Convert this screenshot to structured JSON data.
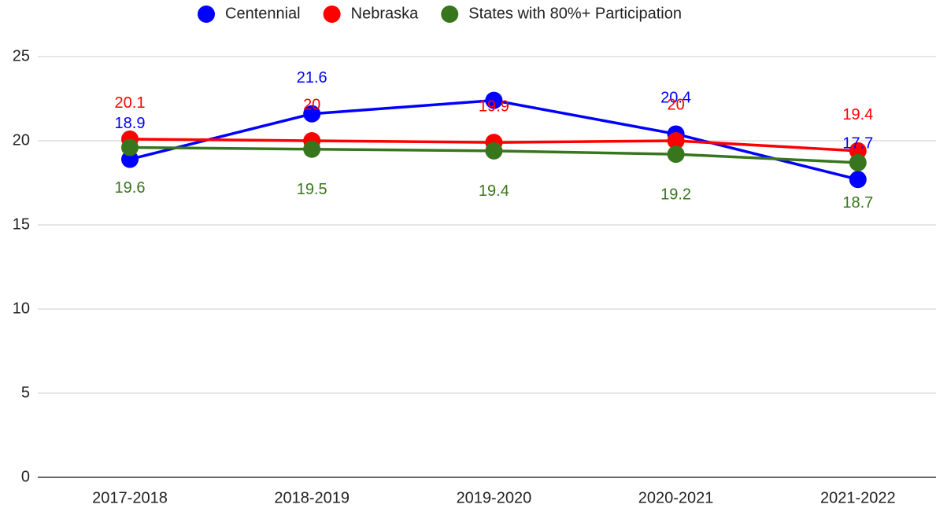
{
  "chart_data": {
    "type": "line",
    "categories": [
      "2017-2018",
      "2018-2019",
      "2019-2020",
      "2020-2021",
      "2021-2022"
    ],
    "series": [
      {
        "name": "Centennial",
        "color": "#0000ff",
        "values": [
          18.9,
          21.6,
          22.4,
          20.4,
          17.7
        ],
        "value_labels": [
          "18.9",
          "21.6",
          null,
          "20.4",
          "17.7"
        ]
      },
      {
        "name": "Nebraska",
        "color": "#ff0000",
        "values": [
          20.1,
          20,
          19.9,
          20,
          19.4
        ]
      },
      {
        "name": "States with 80%+ Participation",
        "color": "#38761d",
        "values": [
          19.6,
          19.5,
          19.4,
          19.2,
          18.7
        ]
      }
    ],
    "ylim": [
      0,
      25
    ],
    "yticks": [
      0,
      5,
      10,
      15,
      20,
      25
    ],
    "grid": true,
    "legend": "top"
  }
}
